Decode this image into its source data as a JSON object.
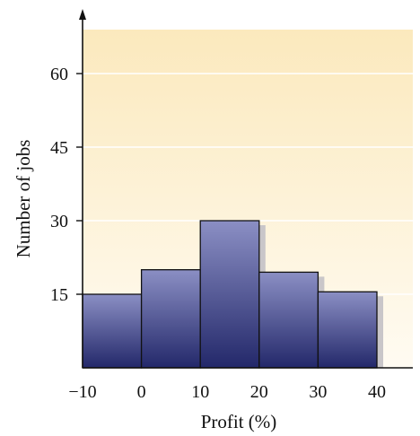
{
  "chart_data": {
    "type": "bar",
    "title": "",
    "xlabel": "Profit (%)",
    "ylabel": "Number of jobs",
    "bins": [
      {
        "from": -10,
        "to": 0,
        "value": 15
      },
      {
        "from": 0,
        "to": 10,
        "value": 20
      },
      {
        "from": 10,
        "to": 20,
        "value": 30
      },
      {
        "from": 20,
        "to": 30,
        "value": 19.5
      },
      {
        "from": 30,
        "to": 40,
        "value": 15.5
      }
    ],
    "xticks": [
      "−10",
      "0",
      "10",
      "20",
      "30",
      "40"
    ],
    "yticks": [
      "15",
      "30",
      "45",
      "60"
    ],
    "xlim": [
      -10,
      45
    ],
    "ylim": [
      0,
      68
    ],
    "grid": true,
    "colors": {
      "bar_top": "#8b8fc4",
      "bar_bottom": "#23286a",
      "bar_edge": "#111111",
      "shadow": "#c9c6c9",
      "bg_top": "#fbe9bd",
      "bg_bottom": "#fffbf2",
      "grid": "#ffffff"
    }
  }
}
